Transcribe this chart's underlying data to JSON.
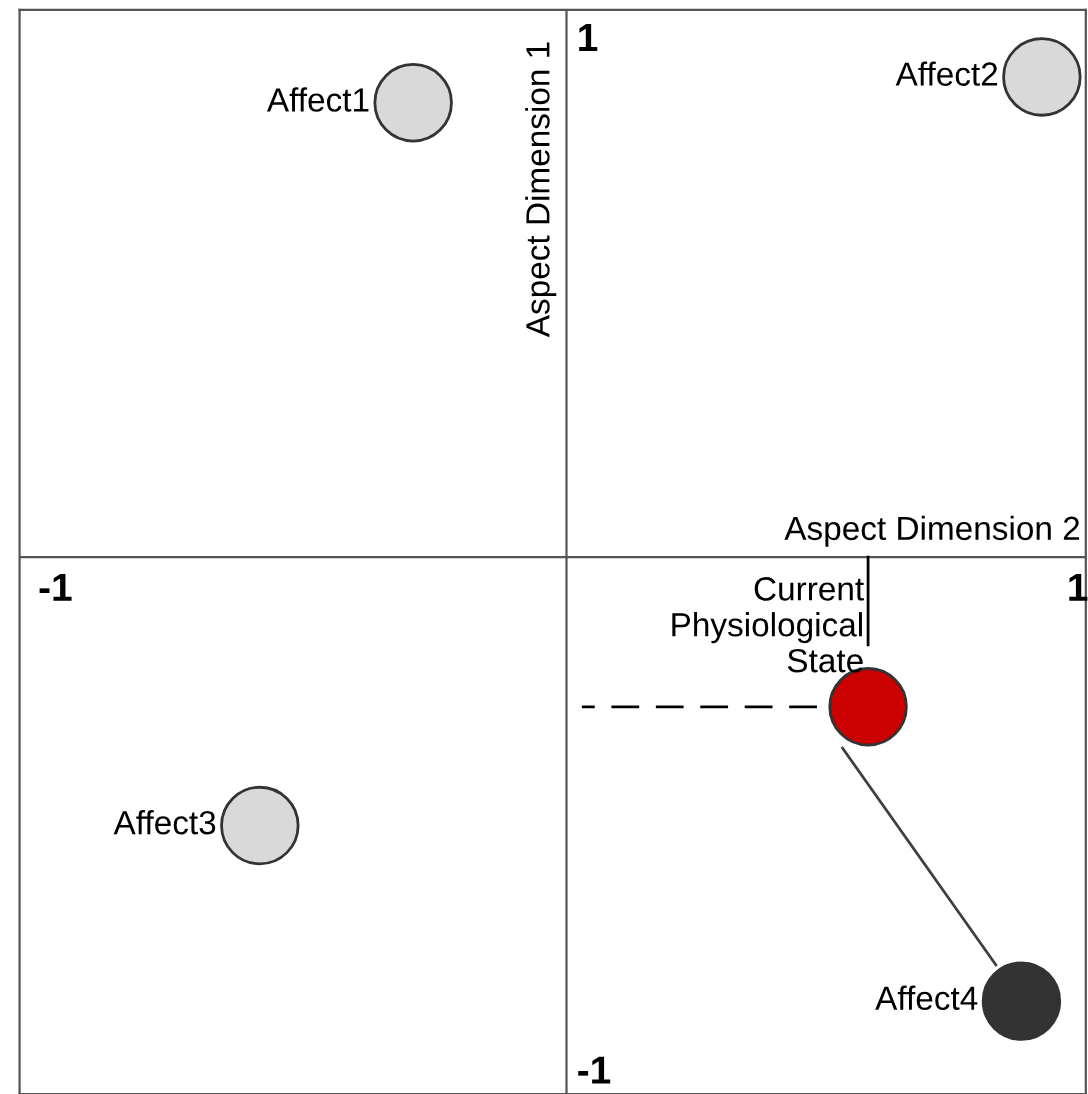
{
  "chart_data": {
    "type": "bubble",
    "xlabel": "Aspect Dimension 2",
    "ylabel": "Aspect Dimension 1",
    "xlim": [
      -1.07,
      1.016
    ],
    "ylim": [
      -1.04,
      1.06
    ],
    "xticks": [
      -1,
      1
    ],
    "yticks": [
      -1,
      1
    ],
    "series": [
      {
        "name": "Affect1",
        "color": "#d9d9d9",
        "x": [
          -0.3
        ],
        "values": [
          0.88
        ],
        "sizes": [
          1
        ]
      },
      {
        "name": "Affect2",
        "color": "#d9d9d9",
        "x": [
          0.93
        ],
        "values": [
          0.93
        ],
        "sizes": [
          1
        ]
      },
      {
        "name": "Affect3",
        "color": "#d9d9d9",
        "x": [
          -0.6
        ],
        "values": [
          -0.52
        ],
        "sizes": [
          1
        ]
      },
      {
        "name": "Current\nPhysiological\nState",
        "color": "#cc0000",
        "x": [
          0.59
        ],
        "values": [
          -0.29
        ],
        "sizes": [
          1
        ]
      },
      {
        "name": "Affect4",
        "color": "#333333",
        "x": [
          0.89
        ],
        "values": [
          -0.86
        ],
        "sizes": [
          1
        ]
      },
      {
        "type": "line",
        "line_style": "dashed",
        "color": "#000000",
        "x": [
          0.49,
          0.03
        ],
        "values": [
          -0.29,
          -0.29
        ]
      },
      {
        "type": "line",
        "line_style": "solid",
        "color": "#000000",
        "x": [
          0.59,
          0.59
        ],
        "values": [
          0.0,
          -0.17
        ]
      },
      {
        "type": "line",
        "line_style": "solid",
        "color": "#404040",
        "x": [
          0.54,
          0.84
        ],
        "values": [
          -0.37,
          -0.79
        ]
      }
    ]
  }
}
